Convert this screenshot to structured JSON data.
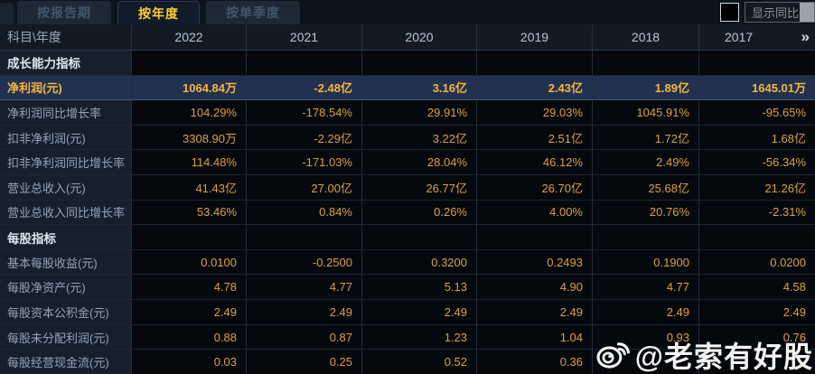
{
  "tabs": [
    {
      "label": "按报告期",
      "active": false
    },
    {
      "label": "按年度",
      "active": true
    },
    {
      "label": "按单季度",
      "active": false
    }
  ],
  "controls": {
    "show_yoy_label": "显示同比"
  },
  "table": {
    "corner_label": "科目\\年度",
    "years": [
      "2022",
      "2021",
      "2020",
      "2019",
      "2018",
      "2017"
    ],
    "more_columns_icon": "»",
    "rows": [
      {
        "type": "section",
        "label": "成长能力指标",
        "values": [
          "",
          "",
          "",
          "",
          "",
          ""
        ]
      },
      {
        "type": "highlight",
        "label": "净利润(元)",
        "values": [
          "1064.84万",
          "-2.48亿",
          "3.16亿",
          "2.43亿",
          "1.89亿",
          "1645.01万"
        ]
      },
      {
        "type": "data",
        "label": "净利润同比增长率",
        "values": [
          "104.29%",
          "-178.54%",
          "29.91%",
          "29.03%",
          "1045.91%",
          "-95.65%"
        ]
      },
      {
        "type": "data",
        "label": "扣非净利润(元)",
        "values": [
          "3308.90万",
          "-2.29亿",
          "3.22亿",
          "2.51亿",
          "1.72亿",
          "1.68亿"
        ]
      },
      {
        "type": "data",
        "label": "扣非净利润同比增长率",
        "values": [
          "114.48%",
          "-171.03%",
          "28.04%",
          "46.12%",
          "2.49%",
          "-56.34%"
        ]
      },
      {
        "type": "data",
        "label": "营业总收入(元)",
        "values": [
          "41.43亿",
          "27.00亿",
          "26.77亿",
          "26.70亿",
          "25.68亿",
          "21.26亿"
        ]
      },
      {
        "type": "data",
        "label": "营业总收入同比增长率",
        "values": [
          "53.46%",
          "0.84%",
          "0.26%",
          "4.00%",
          "20.76%",
          "-2.31%"
        ]
      },
      {
        "type": "section",
        "label": "每股指标",
        "values": [
          "",
          "",
          "",
          "",
          "",
          ""
        ]
      },
      {
        "type": "data",
        "label": "基本每股收益(元)",
        "values": [
          "0.0100",
          "-0.2500",
          "0.3200",
          "0.2493",
          "0.1900",
          "0.0200"
        ]
      },
      {
        "type": "data",
        "label": "每股净资产(元)",
        "values": [
          "4.78",
          "4.77",
          "5.13",
          "4.90",
          "4.77",
          "4.58"
        ]
      },
      {
        "type": "data",
        "label": "每股资本公积金(元)",
        "values": [
          "2.49",
          "2.49",
          "2.49",
          "2.49",
          "2.49",
          "2.49"
        ]
      },
      {
        "type": "data",
        "label": "每股未分配利润(元)",
        "values": [
          "0.88",
          "0.87",
          "1.23",
          "1.04",
          "0.93",
          "0.76"
        ]
      },
      {
        "type": "data",
        "label": "每股经营现金流(元)",
        "values": [
          "0.03",
          "0.25",
          "0.52",
          "0.36",
          "",
          ""
        ]
      }
    ]
  },
  "watermark": {
    "text": "@老索有好股"
  },
  "colors": {
    "active_tab_text": "#ffd02e",
    "value_gold": "#dda23c",
    "highlight_row_bg": "#223150",
    "label_col_bg": "#16202d"
  }
}
